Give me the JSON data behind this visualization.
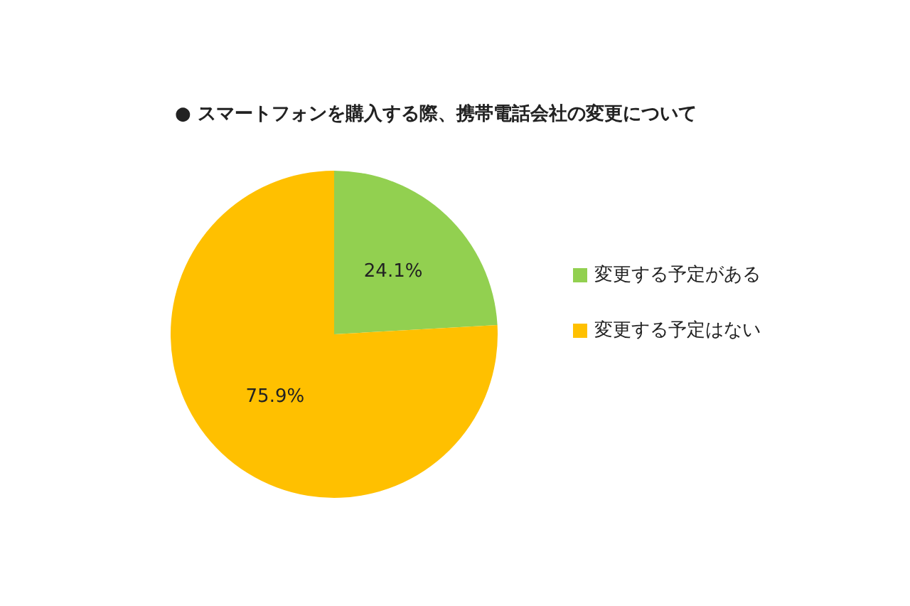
{
  "chart_data": {
    "type": "pie",
    "title": "● スマートフォンを購入する際、携帯電話会社の変更について",
    "categories": [
      "変更する予定がある",
      "変更する予定はない"
    ],
    "values": [
      24.1,
      75.9
    ],
    "colors": [
      "#92d050",
      "#ffc000"
    ],
    "value_labels": [
      "24.1%",
      "75.9%"
    ],
    "legend": "right"
  }
}
